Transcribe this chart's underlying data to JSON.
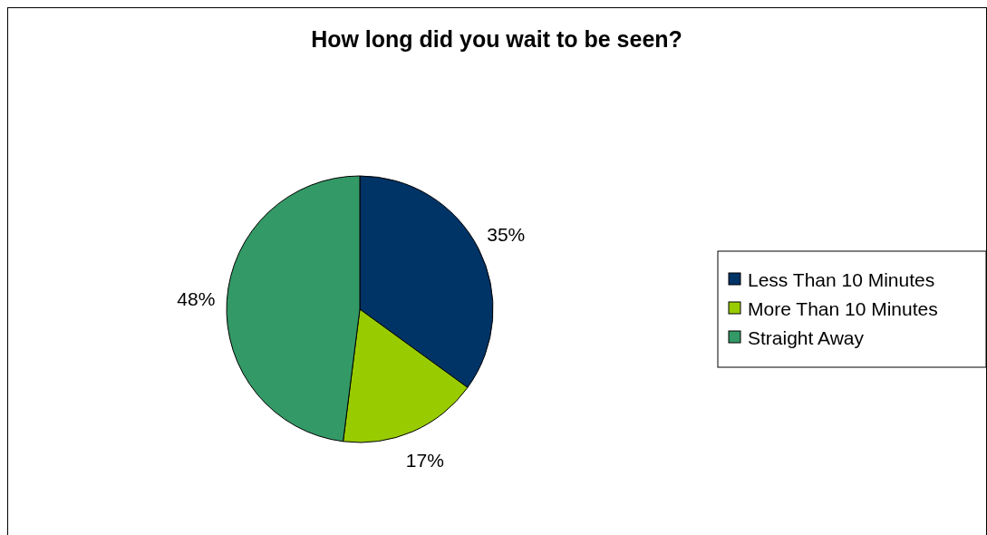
{
  "chart_data": {
    "type": "pie",
    "title": "How long did you wait to be seen?",
    "categories": [
      "Less Than 10 Minutes",
      "More Than 10 Minutes",
      "Straight Away"
    ],
    "values": [
      35,
      17,
      48
    ],
    "colors": [
      "#003366",
      "#99cc00",
      "#339966"
    ],
    "value_labels": [
      "35%",
      "17%",
      "48%"
    ],
    "legend": "right"
  }
}
